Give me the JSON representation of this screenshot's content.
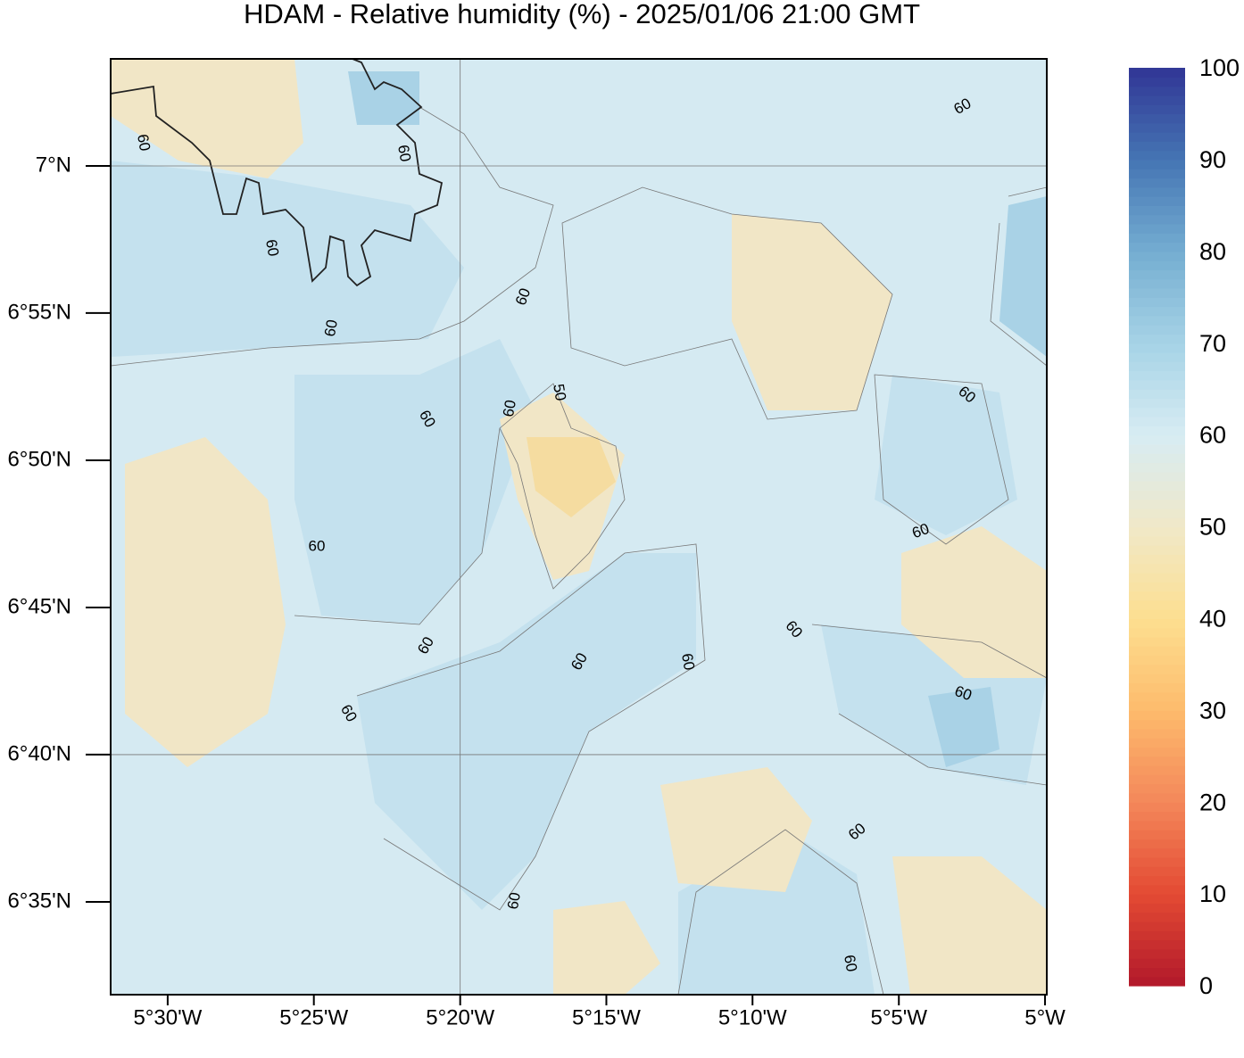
{
  "title": "HDAM - Relative humidity (%)  -  2025/01/06  21:00 GMT",
  "map": {
    "xlim": [
      -5.5325,
      -4.999
    ],
    "ylim": [
      6.5308,
      7.0606
    ],
    "xticks": [
      {
        "value": -5.5,
        "label": "5°30'W"
      },
      {
        "value": -5.4167,
        "label": "5°25'W"
      },
      {
        "value": -5.3333,
        "label": "5°20'W"
      },
      {
        "value": -5.25,
        "label": "5°15'W"
      },
      {
        "value": -5.1667,
        "label": "5°10'W"
      },
      {
        "value": -5.0833,
        "label": "5°5'W"
      },
      {
        "value": -5,
        "label": "5°W"
      }
    ],
    "yticks": [
      {
        "value": 7,
        "label": "7°N"
      },
      {
        "value": 6.9167,
        "label": "6°55'N"
      },
      {
        "value": 6.8333,
        "label": "6°50'N"
      },
      {
        "value": 6.75,
        "label": "6°45'N"
      },
      {
        "value": 6.6667,
        "label": "6°40'N"
      },
      {
        "value": 6.5833,
        "label": "6°35'N"
      }
    ],
    "contour_labels": [
      60,
      60,
      60,
      60,
      60,
      60,
      60,
      50,
      60,
      60,
      60,
      60,
      60,
      60,
      60,
      60,
      60,
      60,
      60,
      60,
      60
    ]
  },
  "colorbar": {
    "lim": [
      0,
      100
    ],
    "ticks": [
      0,
      10,
      20,
      30,
      40,
      50,
      60,
      70,
      80,
      90,
      100
    ],
    "colors": [
      "#b2182b",
      "#e34a33",
      "#f4875a",
      "#fdbb6c",
      "#fddf90",
      "#f0e8c8",
      "#d7ecf3",
      "#a6d3e6",
      "#74add1",
      "#4575b4",
      "#313695"
    ]
  }
}
